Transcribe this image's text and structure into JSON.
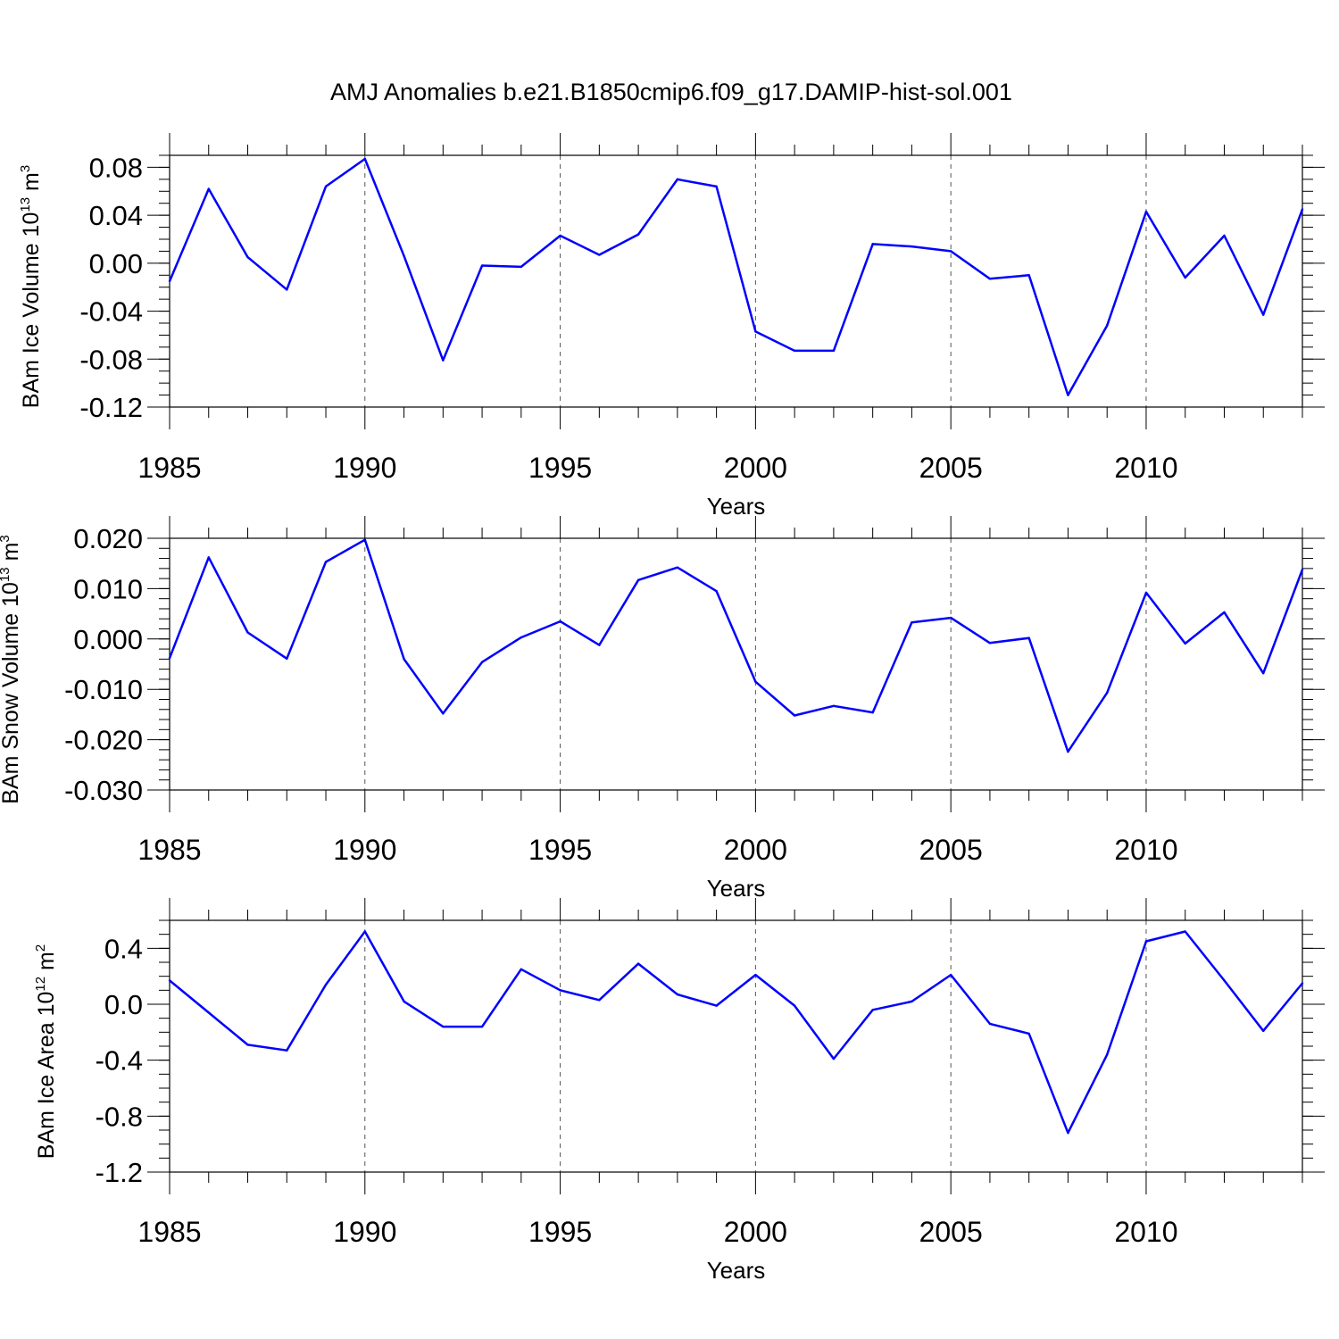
{
  "title": "AMJ Anomalies b.e21.B1850cmip6.f09_g17.DAMIP-hist-sol.001",
  "colors": {
    "series": "#0000ff",
    "axes": "#000000",
    "grid": "#555555"
  },
  "chart_data": [
    {
      "type": "line",
      "ylabel": {
        "text": "BAm Ice Volume 10",
        "sup": "13",
        "unit": "m",
        "unit_sup": "3"
      },
      "xlabel": "Years",
      "x": [
        1985,
        1986,
        1987,
        1988,
        1989,
        1990,
        1991,
        1992,
        1993,
        1994,
        1995,
        1996,
        1997,
        1998,
        1999,
        2000,
        2001,
        2002,
        2003,
        2004,
        2005,
        2006,
        2007,
        2008,
        2009,
        2010,
        2011,
        2012,
        2013,
        2014
      ],
      "values": [
        -0.015,
        0.062,
        0.005,
        -0.022,
        0.064,
        0.087,
        0.006,
        -0.081,
        -0.002,
        -0.003,
        0.023,
        0.007,
        0.024,
        0.07,
        0.064,
        -0.057,
        -0.073,
        -0.073,
        0.016,
        0.014,
        0.01,
        -0.013,
        -0.01,
        -0.11,
        -0.052,
        0.043,
        -0.012,
        0.023,
        -0.043,
        0.045
      ],
      "ylim": [
        -0.12,
        0.09
      ],
      "yticks": [
        -0.12,
        -0.08,
        -0.04,
        0.0,
        0.04,
        0.08
      ],
      "ytick_labels": [
        "-0.12",
        "-0.08",
        "-0.04",
        "0.00",
        "0.04",
        "0.08"
      ],
      "yminor": 0.01,
      "xlim": [
        1985,
        2014
      ],
      "xticks": [
        1985,
        1990,
        1995,
        2000,
        2005,
        2010
      ],
      "xtick_labels": [
        "1985",
        "1990",
        "1995",
        "2000",
        "2005",
        "2010"
      ],
      "grid": "x-dashed"
    },
    {
      "type": "line",
      "ylabel": {
        "text": "BAm Snow Volume 10",
        "sup": "13",
        "unit": "m",
        "unit_sup": "3"
      },
      "xlabel": "Years",
      "x": [
        1985,
        1986,
        1987,
        1988,
        1989,
        1990,
        1991,
        1992,
        1993,
        1994,
        1995,
        1996,
        1997,
        1998,
        1999,
        2000,
        2001,
        2002,
        2003,
        2004,
        2005,
        2006,
        2007,
        2008,
        2009,
        2010,
        2011,
        2012,
        2013,
        2014
      ],
      "values": [
        -0.0038,
        0.0162,
        0.0013,
        -0.0039,
        0.0153,
        0.0197,
        -0.004,
        -0.0148,
        -0.0046,
        0.0003,
        0.0035,
        -0.0012,
        0.0117,
        0.0142,
        0.0095,
        -0.0085,
        -0.0152,
        -0.0133,
        -0.0146,
        0.0033,
        0.0042,
        -0.0008,
        0.0002,
        -0.0224,
        -0.0107,
        0.0092,
        -0.0009,
        0.0053,
        -0.0068,
        0.0138
      ],
      "ylim": [
        -0.03,
        0.02
      ],
      "yticks": [
        -0.03,
        -0.02,
        -0.01,
        0.0,
        0.01,
        0.02
      ],
      "ytick_labels": [
        "-0.030",
        "-0.020",
        "-0.010",
        "0.000",
        "0.010",
        "0.020"
      ],
      "yminor": 0.002,
      "xlim": [
        1985,
        2014
      ],
      "xticks": [
        1985,
        1990,
        1995,
        2000,
        2005,
        2010
      ],
      "xtick_labels": [
        "1985",
        "1990",
        "1995",
        "2000",
        "2005",
        "2010"
      ],
      "grid": "x-dashed"
    },
    {
      "type": "line",
      "ylabel": {
        "text": "BAm Ice Area 10",
        "sup": "12",
        "unit": "m",
        "unit_sup": "2"
      },
      "xlabel": "Years",
      "x": [
        1985,
        1986,
        1987,
        1988,
        1989,
        1990,
        1991,
        1992,
        1993,
        1994,
        1995,
        1996,
        1997,
        1998,
        1999,
        2000,
        2001,
        2002,
        2003,
        2004,
        2005,
        2006,
        2007,
        2008,
        2009,
        2010,
        2011,
        2012,
        2013,
        2014
      ],
      "values": [
        0.17,
        -0.06,
        -0.29,
        -0.33,
        0.14,
        0.52,
        0.02,
        -0.16,
        -0.16,
        0.25,
        0.1,
        0.03,
        0.29,
        0.07,
        -0.01,
        0.21,
        -0.01,
        -0.39,
        -0.04,
        0.02,
        0.21,
        -0.14,
        -0.21,
        -0.92,
        -0.36,
        0.45,
        0.52,
        0.17,
        -0.19,
        0.15
      ],
      "ylim": [
        -1.2,
        0.6
      ],
      "yticks": [
        -1.2,
        -0.8,
        -0.4,
        0.0,
        0.4
      ],
      "ytick_labels": [
        "-1.2",
        "-0.8",
        "-0.4",
        "0.0",
        "0.4"
      ],
      "yminor": 0.1,
      "xlim": [
        1985,
        2014
      ],
      "xticks": [
        1985,
        1990,
        1995,
        2000,
        2005,
        2010
      ],
      "xtick_labels": [
        "1985",
        "1990",
        "1995",
        "2000",
        "2005",
        "2010"
      ],
      "grid": "x-dashed"
    }
  ]
}
